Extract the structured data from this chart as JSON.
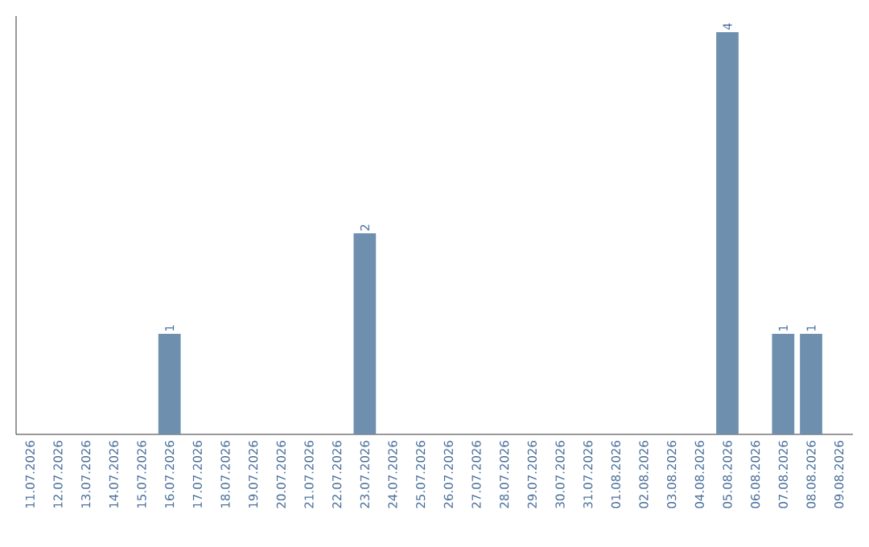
{
  "chart_data": {
    "type": "bar",
    "categories": [
      "11.07.2026",
      "12.07.2026",
      "13.07.2026",
      "14.07.2026",
      "15.07.2026",
      "16.07.2026",
      "17.07.2026",
      "18.07.2026",
      "19.07.2026",
      "20.07.2026",
      "21.07.2026",
      "22.07.2026",
      "23.07.2026",
      "24.07.2026",
      "25.07.2026",
      "26.07.2026",
      "27.07.2026",
      "28.07.2026",
      "29.07.2026",
      "30.07.2026",
      "31.07.2026",
      "01.08.2026",
      "02.08.2026",
      "03.08.2026",
      "04.08.2026",
      "05.08.2026",
      "06.08.2026",
      "07.08.2026",
      "08.08.2026",
      "09.08.2026"
    ],
    "values": [
      0,
      0,
      0,
      0,
      0,
      1,
      0,
      0,
      0,
      0,
      0,
      0,
      2,
      0,
      0,
      0,
      0,
      0,
      0,
      0,
      0,
      0,
      0,
      0,
      0,
      4,
      0,
      1,
      1,
      0
    ],
    "value_labels": [
      null,
      null,
      null,
      null,
      null,
      "1",
      null,
      null,
      null,
      null,
      null,
      null,
      "2",
      null,
      null,
      null,
      null,
      null,
      null,
      null,
      null,
      null,
      null,
      null,
      null,
      "4",
      null,
      "1",
      "1",
      null
    ],
    "color": "#6f8fae"
  }
}
